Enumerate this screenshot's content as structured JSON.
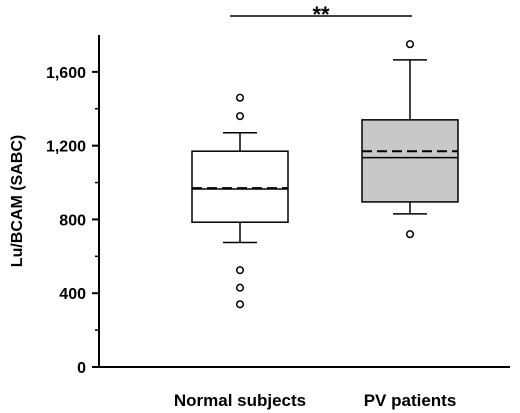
{
  "chart_data": {
    "type": "boxplot",
    "ylabel": "Lu/BCAM  (SABC)",
    "xlabel": "",
    "ylim": [
      0,
      1800
    ],
    "yticks": [
      {
        "value": 0,
        "label": "0"
      },
      {
        "value": 400,
        "label": "400"
      },
      {
        "value": 800,
        "label": "800"
      },
      {
        "value": 1200,
        "label": "1,200"
      },
      {
        "value": 1600,
        "label": "1,600"
      }
    ],
    "categories": [
      "Normal subjects",
      "PV patients"
    ],
    "groups": [
      {
        "name": "Normal subjects",
        "fill": "#ffffff",
        "whisker_low": 675,
        "q1": 785,
        "median": 965,
        "mean": 970,
        "q3": 1170,
        "whisker_high": 1270,
        "outliers": [
          1460,
          1360,
          525,
          430,
          340
        ]
      },
      {
        "name": "PV patients",
        "fill": "#c8c8c8",
        "whisker_low": 830,
        "q1": 895,
        "median": 1135,
        "mean": 1170,
        "q3": 1340,
        "whisker_high": 1665,
        "outliers": [
          1750,
          720
        ]
      }
    ],
    "annotation": {
      "label": "**",
      "between": [
        "Normal subjects",
        "PV patients"
      ]
    },
    "grid": false,
    "legend": "none"
  }
}
